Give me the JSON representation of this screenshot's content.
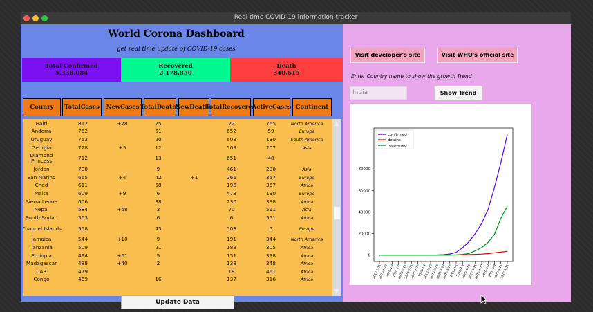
{
  "window": {
    "title": "Real time COVID-19 information tracker",
    "controls": [
      {
        "color": "#ff5f57"
      },
      {
        "color": "#ffbd2e"
      },
      {
        "color": "#28c840"
      }
    ]
  },
  "dashboard": {
    "title": "World Corona Dashboard",
    "subtitle": "get real time update of COVID-19 cases"
  },
  "stats": [
    {
      "label": "Total Confirmed",
      "value": "5,338,084",
      "color": "#7d10f0"
    },
    {
      "label": "Recovered",
      "value": "2,178,850",
      "color": "#00f890"
    },
    {
      "label": "Death",
      "value": "340,615",
      "color": "#ff3f3f"
    }
  ],
  "table": {
    "headers": [
      [
        "Coun",
        "ry"
      ],
      [
        "Total",
        "Cases"
      ],
      [
        "New",
        "Cases"
      ],
      [
        "Total",
        "Deaths"
      ],
      [
        "New",
        "Deaths"
      ],
      [
        "Total",
        "Recovered"
      ],
      [
        "Active",
        "Cases"
      ],
      [
        "Continent"
      ]
    ],
    "rows": [
      [
        "Haiti",
        "812",
        "+78",
        "25",
        "",
        "22",
        "765",
        "North America"
      ],
      [
        "Andorra",
        "762",
        "",
        "51",
        "",
        "652",
        "59",
        "Europe"
      ],
      [
        "Uruguay",
        "753",
        "",
        "20",
        "",
        "603",
        "130",
        "South America"
      ],
      [
        "Georgia",
        "728",
        "+5",
        "12",
        "",
        "509",
        "207",
        "Asia"
      ],
      [
        "Diamond Princess",
        "712",
        "",
        "13",
        "",
        "651",
        "48",
        ""
      ],
      [
        "Jordan",
        "700",
        "",
        "9",
        "",
        "461",
        "230",
        "Asia"
      ],
      [
        "San Marino",
        "665",
        "+4",
        "42",
        "+1",
        "266",
        "357",
        "Europe"
      ],
      [
        "Chad",
        "611",
        "",
        "58",
        "",
        "196",
        "357",
        "Africa"
      ],
      [
        "Malta",
        "609",
        "+9",
        "6",
        "",
        "473",
        "130",
        "Europe"
      ],
      [
        "Sierra Leone",
        "606",
        "",
        "38",
        "",
        "230",
        "338",
        "Africa"
      ],
      [
        "Nepal",
        "584",
        "+68",
        "3",
        "",
        "70",
        "511",
        "Asia"
      ],
      [
        "South Sudan",
        "563",
        "",
        "6",
        "",
        "6",
        "551",
        "Africa"
      ],
      [
        "Channel Islands",
        "558",
        "",
        "45",
        "",
        "508",
        "5",
        "Europe"
      ],
      [
        "Jamaica",
        "544",
        "+10",
        "9",
        "",
        "191",
        "344",
        "North America"
      ],
      [
        "Tanzania",
        "509",
        "",
        "21",
        "",
        "183",
        "305",
        "Africa"
      ],
      [
        "Ethiopia",
        "494",
        "+61",
        "5",
        "",
        "151",
        "338",
        "Africa"
      ],
      [
        "Madagascar",
        "488",
        "+40",
        "2",
        "",
        "138",
        "348",
        "Africa"
      ],
      [
        "CAR",
        "479",
        "",
        "",
        "",
        "18",
        "461",
        "Africa"
      ],
      [
        "Congo",
        "469",
        "",
        "16",
        "",
        "137",
        "316",
        "Africa"
      ]
    ]
  },
  "buttons": {
    "update": "Update Data",
    "developer": "Visit developer's site",
    "who": "Visit WHO's official site",
    "show_trend": "Show Trend"
  },
  "trend": {
    "prompt": "Enter Country name to show the growth Trend",
    "country_value": "India"
  },
  "chart_data": {
    "type": "line",
    "x": [
      "2020-1-22",
      "2020-1-28",
      "2020-2-3",
      "2020-2-9",
      "2020-2-15",
      "2020-2-21",
      "2020-2-27",
      "2020-3-4",
      "2020-3-10",
      "2020-3-16",
      "2020-3-22",
      "2020-3-28",
      "2020-4-3",
      "2020-4-9",
      "2020-4-15",
      "2020-4-21",
      "2020-4-27",
      "2020-5-3",
      "2020-5-9",
      "2020-5-15",
      "2020-5-21"
    ],
    "series": [
      {
        "name": "confirmed",
        "color": "#5a00e0",
        "values": [
          0,
          1,
          3,
          3,
          3,
          3,
          3,
          29,
          62,
          114,
          396,
          987,
          2543,
          6725,
          12322,
          20080,
          29451,
          42533,
          62939,
          85940,
          112028
        ]
      },
      {
        "name": "deaths",
        "color": "#e00000",
        "values": [
          0,
          0,
          0,
          0,
          0,
          0,
          0,
          0,
          0,
          2,
          7,
          24,
          72,
          227,
          405,
          645,
          939,
          1389,
          2109,
          2752,
          3434
        ]
      },
      {
        "name": "recovered",
        "color": "#008a20",
        "values": [
          0,
          0,
          0,
          0,
          0,
          0,
          3,
          3,
          4,
          13,
          23,
          86,
          191,
          620,
          1489,
          3975,
          7027,
          11775,
          19358,
          34224,
          45300
        ]
      }
    ],
    "yticks": [
      0,
      20000,
      40000,
      60000,
      80000
    ],
    "legend": "top-left",
    "grid": false
  }
}
